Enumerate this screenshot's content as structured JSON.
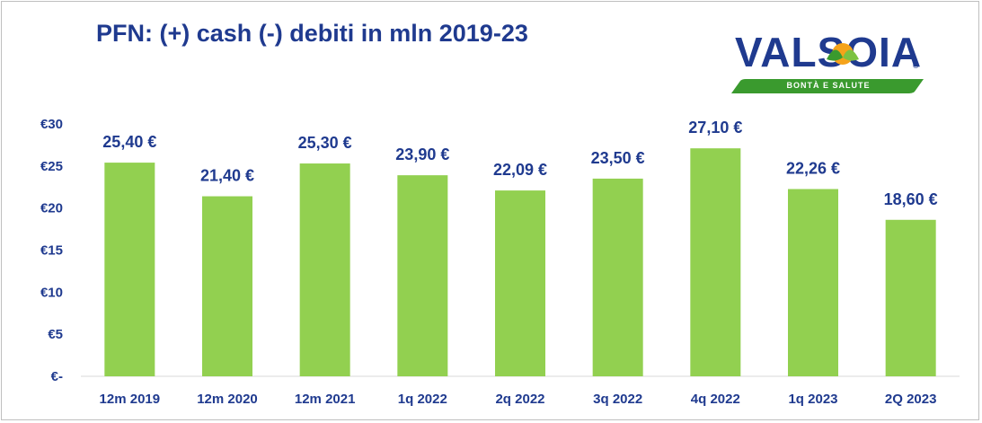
{
  "title": "PFN: (+) cash (-) debiti in mln 2019-23",
  "logo": {
    "brand": "VALSOIA",
    "tagline": "BONTÀ E SALUTE",
    "registered": "®",
    "colors": {
      "brand_blue": "#1f3a8f",
      "band_green": "#3a9a2e",
      "leaf_green": "#7cc242",
      "sun_orange": "#f5a31a"
    }
  },
  "colors": {
    "bar": "#92d050",
    "text": "#1f3a8f",
    "axis": "#d9d9d9"
  },
  "chart_data": {
    "type": "bar",
    "title": "PFN: (+) cash (-) debiti in mln 2019-23",
    "categories": [
      "12m 2019",
      "12m 2020",
      "12m 2021",
      "1q 2022",
      "2q 2022",
      "3q 2022",
      "4q 2022",
      "1q 2023",
      "2Q 2023"
    ],
    "values": [
      25.4,
      21.4,
      25.3,
      23.9,
      22.09,
      23.5,
      27.1,
      22.26,
      18.6
    ],
    "data_labels": [
      "25,40 €",
      "21,40 €",
      "25,30 €",
      "23,90 €",
      "22,09 €",
      "23,50 €",
      "27,10 €",
      "22,26 €",
      "18,60 €"
    ],
    "y_ticks": [
      0,
      5,
      10,
      15,
      20,
      25,
      30
    ],
    "y_tick_labels": [
      "€-",
      "€5",
      "€10",
      "€15",
      "€20",
      "€25",
      "€30"
    ],
    "ylim": [
      0,
      30
    ],
    "xlabel": "",
    "ylabel": "",
    "grid": false,
    "legend": "none"
  }
}
